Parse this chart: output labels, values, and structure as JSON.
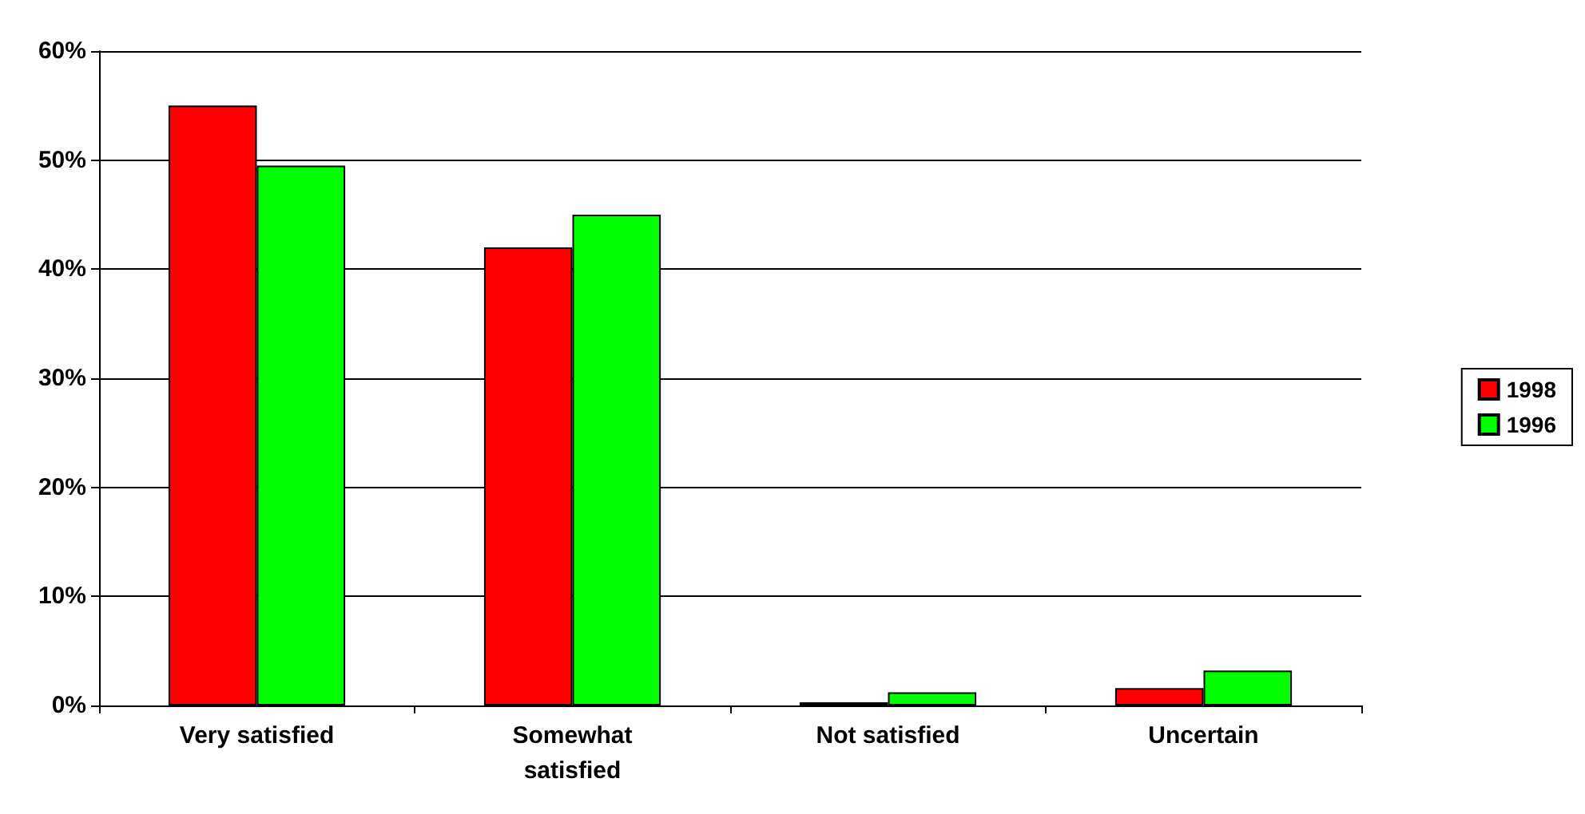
{
  "chart_data": {
    "type": "bar",
    "categories": [
      "Very satisfied",
      "Somewhat\nsatisfied",
      "Not satisfied",
      "Uncertain"
    ],
    "series": [
      {
        "name": "1998",
        "color": "#ff0000",
        "values": [
          55,
          42,
          0.3,
          1.6
        ]
      },
      {
        "name": "1996",
        "color": "#00ff00",
        "values": [
          49.5,
          45,
          1.2,
          3.2
        ]
      }
    ],
    "ylim": [
      0,
      60
    ],
    "yticks": [
      {
        "value": 0,
        "label": "0%"
      },
      {
        "value": 10,
        "label": "10%"
      },
      {
        "value": 20,
        "label": "20%"
      },
      {
        "value": 30,
        "label": "30%"
      },
      {
        "value": 40,
        "label": "40%"
      },
      {
        "value": 50,
        "label": "50%"
      },
      {
        "value": 60,
        "label": "60%"
      }
    ],
    "grid": true,
    "legend": "right"
  }
}
